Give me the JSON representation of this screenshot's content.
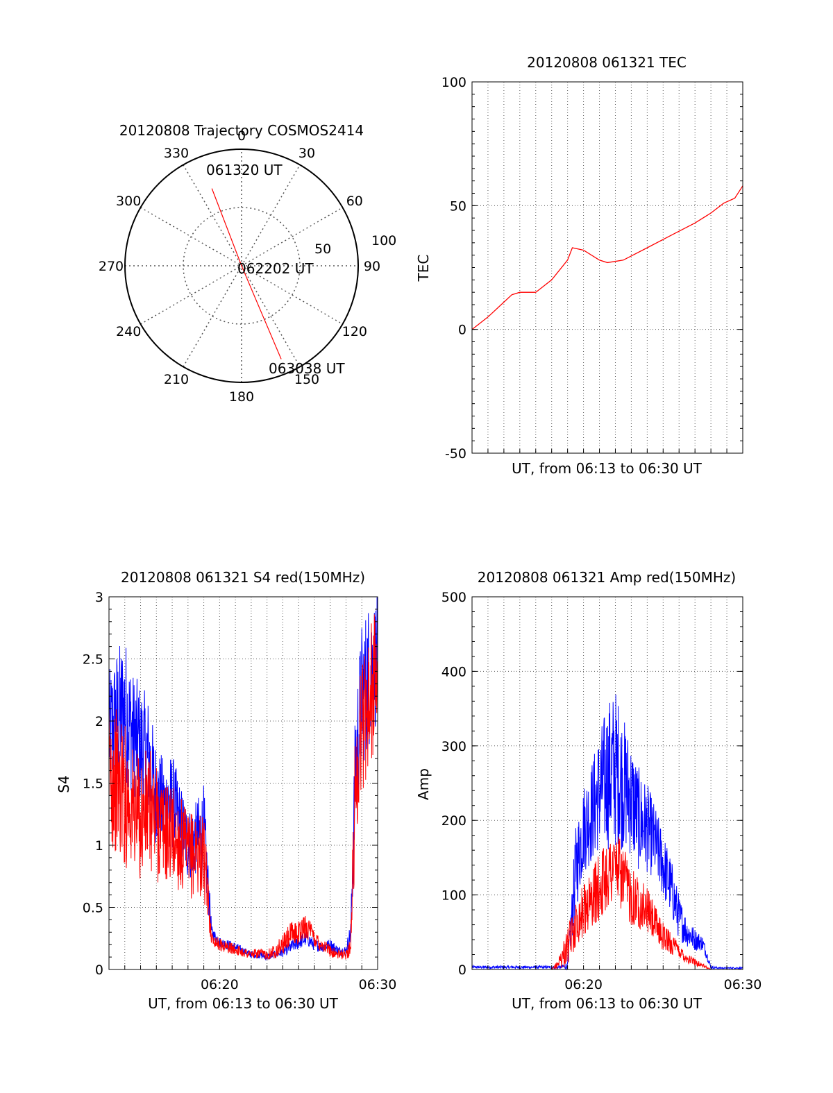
{
  "colors": {
    "red": "#ff0000",
    "blue": "#0000ff",
    "grid": "#555555",
    "axis": "#000000"
  },
  "chart_data": [
    {
      "id": "polar",
      "type": "polar",
      "title": "20120808 Trajectory COSMOS2414",
      "azimuth_labels": [
        "0",
        "30",
        "60",
        "90",
        "120",
        "150",
        "180",
        "210",
        "240",
        "270",
        "300",
        "330"
      ],
      "radial_labels": [
        "50",
        "100"
      ],
      "rlim": [
        0,
        100
      ],
      "grid": true,
      "track": [
        {
          "az": 339,
          "r": 71,
          "label": "061320 UT"
        },
        {
          "az": 90,
          "r": 0,
          "label": "062202 UT"
        },
        {
          "az": 157,
          "r": 87,
          "label": "063038 UT"
        }
      ]
    },
    {
      "id": "tec",
      "type": "line",
      "title": "20120808 061321 TEC",
      "xlabel": "UT, from 06:13 to 06:30 UT",
      "ylabel": "TEC",
      "xlim": [
        0,
        17
      ],
      "ylim": [
        -50,
        100
      ],
      "yticks": [
        -50,
        0,
        50,
        100
      ],
      "xticks": [],
      "grid": true,
      "series": [
        {
          "color": "red",
          "x": [
            0,
            1,
            2,
            2.5,
            3,
            4,
            5,
            6,
            6.3,
            7,
            8,
            8.5,
            9.5,
            11,
            12.5,
            14,
            15,
            15.8,
            16.5,
            17
          ],
          "y": [
            0,
            5,
            11,
            14,
            15,
            15,
            20,
            28,
            33,
            32,
            28,
            27,
            28,
            33,
            38,
            43,
            47,
            51,
            53,
            58
          ]
        }
      ]
    },
    {
      "id": "s4",
      "type": "line",
      "title": "20120808 061321 S4 red(150MHz)",
      "xlabel": "UT, from 06:13 to 06:30 UT",
      "ylabel": "S4",
      "xlim": [
        0,
        17
      ],
      "ylim": [
        0,
        3
      ],
      "yticks": [
        "0",
        "0.5",
        "1",
        "1.5",
        "2",
        "2.5",
        "3"
      ],
      "xticks": [
        {
          "x": 7,
          "label": "06:20"
        },
        {
          "x": 17,
          "label": "06:30"
        }
      ],
      "grid": true,
      "series": [
        {
          "color": "blue",
          "x": [
            0,
            0.5,
            1,
            1.5,
            2,
            2.5,
            3,
            3.5,
            4,
            4.5,
            5,
            5.5,
            6,
            6.5,
            7,
            7.5,
            8,
            8.5,
            9,
            9.5,
            10,
            10.5,
            11,
            11.5,
            12,
            12.5,
            13,
            13.5,
            14,
            14.5,
            15,
            15.3,
            15.6,
            16,
            16.5,
            17
          ],
          "y": [
            1.9,
            2.0,
            2.1,
            1.9,
            1.8,
            1.7,
            1.4,
            1.3,
            1.35,
            1.2,
            1.0,
            1.05,
            1.1,
            0.3,
            0.22,
            0.2,
            0.18,
            0.15,
            0.12,
            0.12,
            0.1,
            0.12,
            0.14,
            0.18,
            0.22,
            0.25,
            0.2,
            0.18,
            0.2,
            0.15,
            0.15,
            0.3,
            1.6,
            2.2,
            2.4,
            2.5
          ],
          "amplitude": [
            0.5,
            0.6,
            0.6,
            0.5,
            0.5,
            0.5,
            0.4,
            0.4,
            0.4,
            0.3,
            0.3,
            0.3,
            0.4,
            0.05,
            0.04,
            0.04,
            0.04,
            0.03,
            0.03,
            0.03,
            0.03,
            0.03,
            0.04,
            0.05,
            0.06,
            0.06,
            0.05,
            0.04,
            0.05,
            0.04,
            0.04,
            0.1,
            0.6,
            0.6,
            0.6,
            0.5
          ]
        },
        {
          "color": "red",
          "x": [
            0,
            0.5,
            1,
            1.5,
            2,
            2.5,
            3,
            3.5,
            4,
            4.5,
            5,
            5.5,
            6,
            6.5,
            7,
            7.5,
            8,
            8.5,
            9,
            9.5,
            10,
            10.5,
            11,
            11.5,
            12,
            12.5,
            13,
            13.5,
            14,
            14.5,
            15,
            15.3,
            15.6,
            16,
            16.5,
            17
          ],
          "y": [
            1.6,
            1.5,
            1.4,
            1.3,
            1.2,
            1.3,
            1.2,
            1.1,
            1.1,
            1.0,
            0.9,
            0.95,
            0.9,
            0.25,
            0.2,
            0.18,
            0.16,
            0.14,
            0.12,
            0.13,
            0.12,
            0.15,
            0.2,
            0.28,
            0.3,
            0.35,
            0.25,
            0.2,
            0.15,
            0.12,
            0.12,
            0.2,
            1.5,
            2.0,
            2.2,
            2.4
          ],
          "amplitude": [
            0.6,
            0.6,
            0.6,
            0.5,
            0.5,
            0.5,
            0.5,
            0.4,
            0.4,
            0.4,
            0.35,
            0.35,
            0.35,
            0.05,
            0.05,
            0.05,
            0.04,
            0.04,
            0.04,
            0.04,
            0.04,
            0.06,
            0.08,
            0.1,
            0.1,
            0.1,
            0.08,
            0.06,
            0.05,
            0.04,
            0.04,
            0.1,
            0.6,
            0.6,
            0.6,
            0.5
          ]
        }
      ]
    },
    {
      "id": "amp",
      "type": "line",
      "title": "20120808 061321 Amp red(150MHz)",
      "xlabel": "UT, from 06:13 to 06:30 UT",
      "ylabel": "Amp",
      "xlim": [
        0,
        17
      ],
      "ylim": [
        0,
        500
      ],
      "yticks": [
        "0",
        "100",
        "200",
        "300",
        "400",
        "500"
      ],
      "xticks": [
        {
          "x": 7,
          "label": "06:20"
        },
        {
          "x": 17,
          "label": "06:30"
        }
      ],
      "grid": true,
      "series": [
        {
          "color": "blue",
          "x": [
            0,
            1,
            2,
            3,
            4,
            5,
            5.5,
            6,
            6.5,
            7,
            7.5,
            8,
            8.5,
            9,
            9.5,
            10,
            10.5,
            11,
            11.5,
            12,
            12.5,
            13,
            13.5,
            14,
            14.5,
            15,
            15.5,
            16,
            17
          ],
          "y": [
            3,
            3,
            3,
            3,
            3,
            3,
            3,
            5,
            130,
            190,
            210,
            240,
            260,
            270,
            250,
            230,
            200,
            190,
            170,
            140,
            110,
            70,
            50,
            40,
            35,
            3,
            2,
            2,
            2
          ],
          "amplitude": [
            2,
            2,
            2,
            2,
            2,
            2,
            2,
            5,
            60,
            60,
            70,
            80,
            100,
            110,
            90,
            80,
            70,
            60,
            50,
            45,
            40,
            30,
            20,
            15,
            10,
            2,
            1,
            1,
            1
          ]
        },
        {
          "color": "red",
          "x": [
            0,
            5,
            5.3,
            5.6,
            6,
            6.5,
            7,
            7.5,
            8,
            8.5,
            9,
            9.5,
            10,
            10.5,
            11,
            11.5,
            12,
            12.5,
            13,
            13.5,
            14,
            14.5,
            15
          ],
          "y": [
            0,
            0,
            5,
            15,
            30,
            60,
            80,
            95,
            110,
            130,
            140,
            120,
            100,
            90,
            80,
            60,
            45,
            35,
            25,
            15,
            10,
            5,
            0
          ],
          "amplitude": [
            0,
            0,
            5,
            15,
            25,
            30,
            35,
            40,
            45,
            50,
            50,
            45,
            40,
            35,
            30,
            25,
            20,
            15,
            10,
            8,
            5,
            3,
            0
          ]
        }
      ]
    }
  ]
}
